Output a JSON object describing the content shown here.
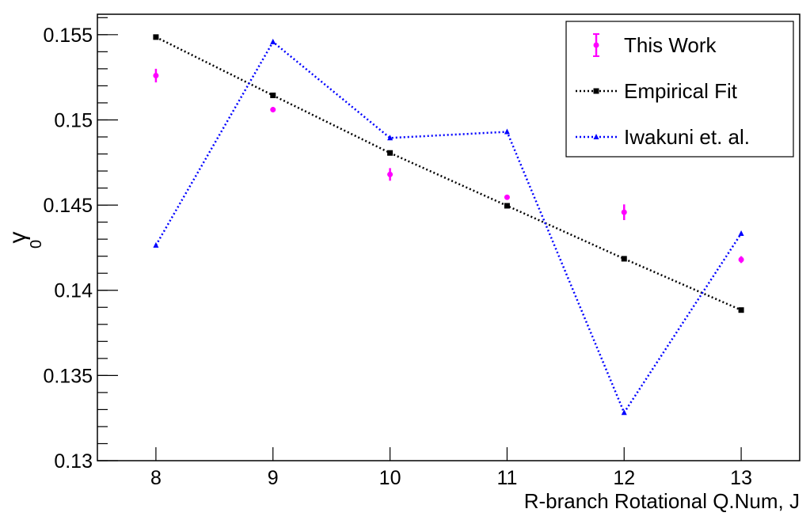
{
  "chart_data": {
    "type": "scatter",
    "title": "",
    "xlabel": "R-branch Rotational Q.Num, J",
    "ylabel": "γ",
    "ylabel_subscript": "0",
    "xlim": [
      7.5,
      13.5
    ],
    "ylim": [
      0.13,
      0.1562
    ],
    "x_ticks": [
      "8",
      "9",
      "10",
      "11",
      "12",
      "13"
    ],
    "y_ticks": [
      "0.13",
      "0.135",
      "0.14",
      "0.145",
      "0.15",
      "0.155"
    ],
    "grid": false,
    "legend_position": "top-right",
    "series": [
      {
        "name": "This Work",
        "style": "points-with-errorbars",
        "color": "#ff00ff",
        "x": [
          8,
          9,
          10,
          11,
          12,
          13
        ],
        "y": [
          0.1526,
          0.1506,
          0.1468,
          0.14546,
          0.14458,
          0.1418
        ],
        "yerr": [
          0.0004,
          0.00015,
          0.00037,
          0.0001,
          0.00046,
          0.0002
        ]
      },
      {
        "name": "Empirical Fit",
        "style": "dotted-line-squares",
        "color": "#000000",
        "x": [
          8,
          9,
          10,
          11,
          12,
          13
        ],
        "y": [
          0.15486,
          0.15144,
          0.14806,
          0.14496,
          0.14185,
          0.13884
        ]
      },
      {
        "name": "Iwakuni et. al.",
        "style": "dotted-line-triangles",
        "color": "#0000ff",
        "x": [
          8,
          9,
          10,
          11,
          12,
          13
        ],
        "y": [
          0.14264,
          0.15458,
          0.14894,
          0.1493,
          0.13282,
          0.14333
        ]
      }
    ]
  }
}
